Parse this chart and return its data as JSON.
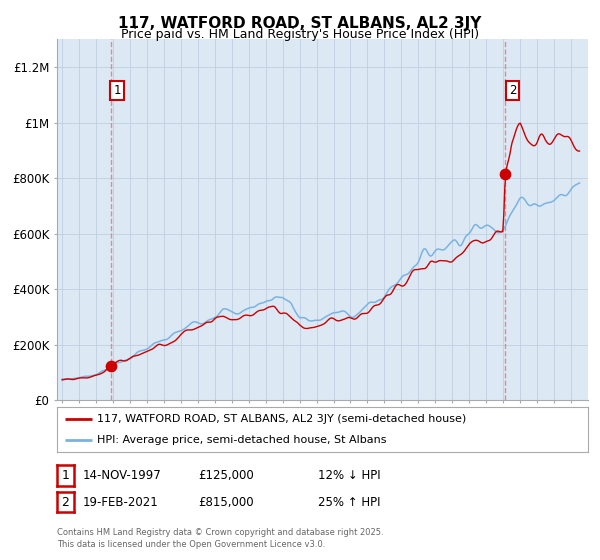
{
  "title": "117, WATFORD ROAD, ST ALBANS, AL2 3JY",
  "subtitle": "Price paid vs. HM Land Registry's House Price Index (HPI)",
  "legend_line1": "117, WATFORD ROAD, ST ALBANS, AL2 3JY (semi-detached house)",
  "legend_line2": "HPI: Average price, semi-detached house, St Albans",
  "annotation1_label": "1",
  "annotation1_date": "14-NOV-1997",
  "annotation1_price": "£125,000",
  "annotation1_hpi": "12% ↓ HPI",
  "annotation2_label": "2",
  "annotation2_date": "19-FEB-2021",
  "annotation2_price": "£815,000",
  "annotation2_hpi": "25% ↑ HPI",
  "footnote": "Contains HM Land Registry data © Crown copyright and database right 2025.\nThis data is licensed under the Open Government Licence v3.0.",
  "hpi_color": "#7ab3e0",
  "price_color": "#cc0000",
  "dot_color": "#cc0000",
  "dashed_color": "#e08080",
  "chart_bg": "#dce9f5",
  "ylim": [
    0,
    1300000
  ],
  "yticks": [
    0,
    200000,
    400000,
    600000,
    800000,
    1000000,
    1200000
  ],
  "ytick_labels": [
    "£0",
    "£200K",
    "£400K",
    "£600K",
    "£800K",
    "£1M",
    "£1.2M"
  ],
  "sale1_year": 1997.87,
  "sale1_price": 125000,
  "sale2_year": 2021.13,
  "sale2_price": 815000,
  "background_color": "#ffffff",
  "grid_color": "#c0cfe0"
}
